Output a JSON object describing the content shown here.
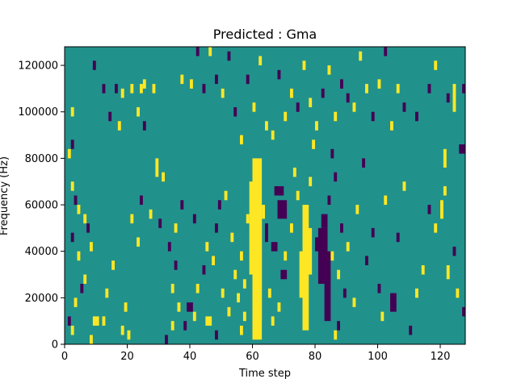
{
  "chart_data": {
    "type": "heatmap",
    "title": "Predicted : Gma",
    "xlabel": "Time step",
    "ylabel": "Frequency (Hz)",
    "xlim": [
      0,
      128
    ],
    "ylim": [
      0,
      128000
    ],
    "x_ticks": [
      0,
      20,
      40,
      60,
      80,
      100,
      120
    ],
    "y_ticks": [
      0,
      20000,
      40000,
      60000,
      80000,
      100000,
      120000
    ],
    "x_tick_labels": [
      "0",
      "20",
      "40",
      "60",
      "80",
      "100",
      "120"
    ],
    "y_tick_labels": [
      "0",
      "20000",
      "40000",
      "60000",
      "80000",
      "100000",
      "120000"
    ],
    "grid": false,
    "colors": {
      "low": "#440154",
      "mid": "#21918c",
      "high": "#fde725"
    },
    "value_levels": [
      -1,
      0,
      1
    ],
    "background_level": 0,
    "time_steps": 128,
    "freq_bins": 128,
    "freq_bin_width_hz": 1000,
    "note": "cells: [time_step_start, time_step_end, freq_start_hz, freq_end_hz, value]",
    "cells": [
      [
        60,
        63,
        2000,
        80000,
        1
      ],
      [
        59,
        61,
        30000,
        70000,
        1
      ],
      [
        61,
        63,
        10000,
        60000,
        1
      ],
      [
        76,
        78,
        6000,
        60000,
        1
      ],
      [
        75,
        77,
        20000,
        40000,
        1
      ],
      [
        77,
        79,
        30000,
        50000,
        1
      ],
      [
        81,
        84,
        26000,
        50000,
        -1
      ],
      [
        80,
        82,
        40000,
        46000,
        -1
      ],
      [
        83,
        85,
        10000,
        40000,
        -1
      ],
      [
        82,
        84,
        50000,
        56000,
        -1
      ],
      [
        68,
        71,
        54000,
        62000,
        -1
      ],
      [
        67,
        70,
        64000,
        68000,
        -1
      ],
      [
        69,
        71,
        28000,
        32000,
        -1
      ],
      [
        66,
        68,
        40000,
        44000,
        -1
      ],
      [
        64,
        65,
        44000,
        52000,
        -1
      ],
      [
        63,
        64,
        54000,
        60000,
        1
      ],
      [
        68,
        69,
        14000,
        18000,
        1
      ],
      [
        57,
        58,
        10000,
        14000,
        1
      ],
      [
        57,
        58,
        24000,
        28000,
        1
      ],
      [
        56,
        57,
        36000,
        40000,
        1
      ],
      [
        58,
        59,
        52000,
        56000,
        1
      ],
      [
        65,
        66,
        20000,
        24000,
        1
      ],
      [
        66,
        67,
        8000,
        12000,
        1
      ],
      [
        70,
        71,
        36000,
        40000,
        1
      ],
      [
        72,
        73,
        48000,
        52000,
        1
      ],
      [
        74,
        75,
        62000,
        66000,
        1
      ],
      [
        73,
        74,
        72000,
        76000,
        1
      ],
      [
        78,
        79,
        68000,
        72000,
        1
      ],
      [
        79,
        80,
        84000,
        88000,
        1
      ],
      [
        84,
        85,
        60000,
        64000,
        -1
      ],
      [
        86,
        87,
        70000,
        74000,
        -1
      ],
      [
        85,
        86,
        80000,
        84000,
        -1
      ],
      [
        88,
        89,
        48000,
        52000,
        -1
      ],
      [
        89,
        90,
        20000,
        24000,
        -1
      ],
      [
        87,
        88,
        6000,
        10000,
        -1
      ],
      [
        86,
        87,
        2000,
        6000,
        1
      ],
      [
        85,
        86,
        36000,
        40000,
        1
      ],
      [
        87,
        88,
        28000,
        32000,
        1
      ],
      [
        90,
        91,
        40000,
        44000,
        1
      ],
      [
        92,
        93,
        16000,
        20000,
        1
      ],
      [
        93,
        94,
        56000,
        60000,
        1
      ],
      [
        95,
        96,
        76000,
        80000,
        -1
      ],
      [
        96,
        97,
        34000,
        38000,
        -1
      ],
      [
        98,
        99,
        46000,
        50000,
        -1
      ],
      [
        100,
        101,
        22000,
        26000,
        -1
      ],
      [
        101,
        102,
        10000,
        14000,
        1
      ],
      [
        102,
        103,
        60000,
        64000,
        1
      ],
      [
        104,
        106,
        14000,
        22000,
        -1
      ],
      [
        106,
        107,
        44000,
        48000,
        -1
      ],
      [
        108,
        109,
        66000,
        70000,
        1
      ],
      [
        110,
        111,
        4000,
        8000,
        -1
      ],
      [
        112,
        113,
        20000,
        24000,
        1
      ],
      [
        114,
        115,
        30000,
        34000,
        1
      ],
      [
        116,
        117,
        56000,
        60000,
        -1
      ],
      [
        118,
        119,
        48000,
        52000,
        1
      ],
      [
        120,
        121,
        54000,
        62000,
        1
      ],
      [
        121,
        122,
        64000,
        68000,
        1
      ],
      [
        121,
        122,
        76000,
        84000,
        1
      ],
      [
        122,
        123,
        28000,
        34000,
        1
      ],
      [
        124,
        125,
        38000,
        42000,
        -1
      ],
      [
        126,
        128,
        82000,
        86000,
        -1
      ],
      [
        127,
        128,
        12000,
        16000,
        -1
      ],
      [
        125,
        126,
        20000,
        24000,
        1
      ],
      [
        122,
        123,
        104000,
        108000,
        -1
      ],
      [
        124,
        125,
        100000,
        112000,
        1
      ],
      [
        127,
        128,
        108000,
        112000,
        -1
      ],
      [
        118,
        119,
        118000,
        122000,
        1
      ],
      [
        116,
        117,
        108000,
        112000,
        -1
      ],
      [
        112,
        113,
        96000,
        100000,
        -1
      ],
      [
        108,
        109,
        100000,
        104000,
        -1
      ],
      [
        106,
        107,
        108000,
        112000,
        1
      ],
      [
        104,
        105,
        92000,
        96000,
        1
      ],
      [
        102,
        103,
        124000,
        128000,
        -1
      ],
      [
        100,
        101,
        110000,
        114000,
        1
      ],
      [
        98,
        99,
        96000,
        100000,
        -1
      ],
      [
        96,
        97,
        108000,
        112000,
        1
      ],
      [
        94,
        95,
        122000,
        126000,
        1
      ],
      [
        92,
        93,
        100000,
        104000,
        1
      ],
      [
        90,
        91,
        104000,
        108000,
        -1
      ],
      [
        88,
        89,
        110000,
        114000,
        -1
      ],
      [
        86,
        87,
        96000,
        100000,
        1
      ],
      [
        84,
        85,
        116000,
        120000,
        1
      ],
      [
        82,
        83,
        106000,
        110000,
        -1
      ],
      [
        80,
        81,
        92000,
        96000,
        1
      ],
      [
        78,
        79,
        102000,
        106000,
        1
      ],
      [
        76,
        77,
        118000,
        122000,
        1
      ],
      [
        74,
        75,
        100000,
        104000,
        -1
      ],
      [
        72,
        73,
        106000,
        110000,
        1
      ],
      [
        70,
        71,
        96000,
        100000,
        1
      ],
      [
        68,
        69,
        114000,
        118000,
        -1
      ],
      [
        66,
        67,
        88000,
        92000,
        1
      ],
      [
        64,
        65,
        92000,
        96000,
        1
      ],
      [
        62,
        63,
        120000,
        124000,
        1
      ],
      [
        60,
        61,
        100000,
        104000,
        1
      ],
      [
        58,
        59,
        112000,
        116000,
        -1
      ],
      [
        56,
        57,
        86000,
        90000,
        1
      ],
      [
        54,
        55,
        98000,
        102000,
        -1
      ],
      [
        52,
        53,
        122000,
        126000,
        -1
      ],
      [
        50,
        51,
        106000,
        110000,
        1
      ],
      [
        48,
        49,
        112000,
        116000,
        -1
      ],
      [
        46,
        47,
        124000,
        128000,
        1
      ],
      [
        44,
        45,
        108000,
        112000,
        -1
      ],
      [
        42,
        43,
        124000,
        128000,
        -1
      ],
      [
        40,
        41,
        110000,
        114000,
        1
      ],
      [
        37,
        38,
        112000,
        116000,
        1
      ],
      [
        28,
        29,
        108000,
        112000,
        1
      ],
      [
        24,
        25,
        108000,
        112000,
        1
      ],
      [
        21,
        22,
        108000,
        112000,
        1
      ],
      [
        18,
        19,
        106000,
        110000,
        1
      ],
      [
        16,
        17,
        108000,
        112000,
        -1
      ],
      [
        12,
        13,
        108000,
        112000,
        -1
      ],
      [
        9,
        10,
        118000,
        122000,
        -1
      ],
      [
        14,
        15,
        96000,
        100000,
        -1
      ],
      [
        23,
        24,
        98000,
        102000,
        1
      ],
      [
        25,
        26,
        110000,
        114000,
        1
      ],
      [
        2,
        3,
        98000,
        102000,
        1
      ],
      [
        17,
        18,
        92000,
        96000,
        1
      ],
      [
        25,
        26,
        92000,
        96000,
        -1
      ],
      [
        29,
        30,
        72000,
        80000,
        1
      ],
      [
        31,
        32,
        70000,
        74000,
        1
      ],
      [
        2,
        3,
        84000,
        88000,
        -1
      ],
      [
        1,
        2,
        80000,
        84000,
        1
      ],
      [
        2,
        3,
        66000,
        70000,
        1
      ],
      [
        3,
        4,
        60000,
        64000,
        -1
      ],
      [
        4,
        5,
        56000,
        60000,
        1
      ],
      [
        6,
        7,
        52000,
        56000,
        1
      ],
      [
        7,
        8,
        48000,
        52000,
        -1
      ],
      [
        8,
        9,
        40000,
        44000,
        1
      ],
      [
        2,
        3,
        44000,
        48000,
        -1
      ],
      [
        4,
        5,
        36000,
        40000,
        1
      ],
      [
        6,
        7,
        26000,
        30000,
        1
      ],
      [
        5,
        6,
        22000,
        26000,
        -1
      ],
      [
        3,
        4,
        16000,
        20000,
        1
      ],
      [
        1,
        2,
        8000,
        12000,
        -1
      ],
      [
        2,
        3,
        4000,
        8000,
        1
      ],
      [
        9,
        11,
        8000,
        12000,
        1
      ],
      [
        12,
        13,
        8000,
        12000,
        1
      ],
      [
        8,
        9,
        0,
        4000,
        1
      ],
      [
        13,
        14,
        20000,
        24000,
        1
      ],
      [
        15,
        16,
        32000,
        36000,
        1
      ],
      [
        18,
        19,
        4000,
        8000,
        1
      ],
      [
        19,
        20,
        14000,
        18000,
        1
      ],
      [
        20,
        21,
        2000,
        6000,
        1
      ],
      [
        23,
        24,
        42000,
        46000,
        1
      ],
      [
        21,
        22,
        52000,
        56000,
        1
      ],
      [
        24,
        25,
        60000,
        64000,
        -1
      ],
      [
        27,
        28,
        54000,
        58000,
        1
      ],
      [
        30,
        31,
        50000,
        54000,
        -1
      ],
      [
        33,
        34,
        40000,
        44000,
        -1
      ],
      [
        35,
        36,
        32000,
        36000,
        -1
      ],
      [
        34,
        35,
        22000,
        26000,
        1
      ],
      [
        36,
        37,
        14000,
        18000,
        1
      ],
      [
        38,
        39,
        6000,
        10000,
        -1
      ],
      [
        39,
        41,
        14000,
        18000,
        -1
      ],
      [
        41,
        42,
        10000,
        14000,
        1
      ],
      [
        42,
        43,
        22000,
        26000,
        1
      ],
      [
        44,
        45,
        30000,
        34000,
        -1
      ],
      [
        45,
        46,
        40000,
        44000,
        1
      ],
      [
        47,
        48,
        34000,
        38000,
        1
      ],
      [
        48,
        49,
        48000,
        52000,
        -1
      ],
      [
        49,
        50,
        58000,
        62000,
        -1
      ],
      [
        51,
        52,
        62000,
        66000,
        1
      ],
      [
        53,
        54,
        44000,
        48000,
        1
      ],
      [
        54,
        55,
        28000,
        32000,
        1
      ],
      [
        55,
        56,
        18000,
        22000,
        1
      ],
      [
        56,
        57,
        4000,
        8000,
        1
      ],
      [
        52,
        53,
        12000,
        16000,
        1
      ],
      [
        50,
        51,
        20000,
        24000,
        1
      ],
      [
        45,
        47,
        8000,
        12000,
        1
      ],
      [
        37,
        38,
        58000,
        62000,
        -1
      ],
      [
        35,
        36,
        48000,
        52000,
        1
      ],
      [
        41,
        42,
        52000,
        56000,
        -1
      ],
      [
        34,
        35,
        6000,
        10000,
        1
      ],
      [
        48,
        49,
        2000,
        6000,
        -1
      ],
      [
        32,
        33,
        0,
        4000,
        -1
      ]
    ]
  }
}
